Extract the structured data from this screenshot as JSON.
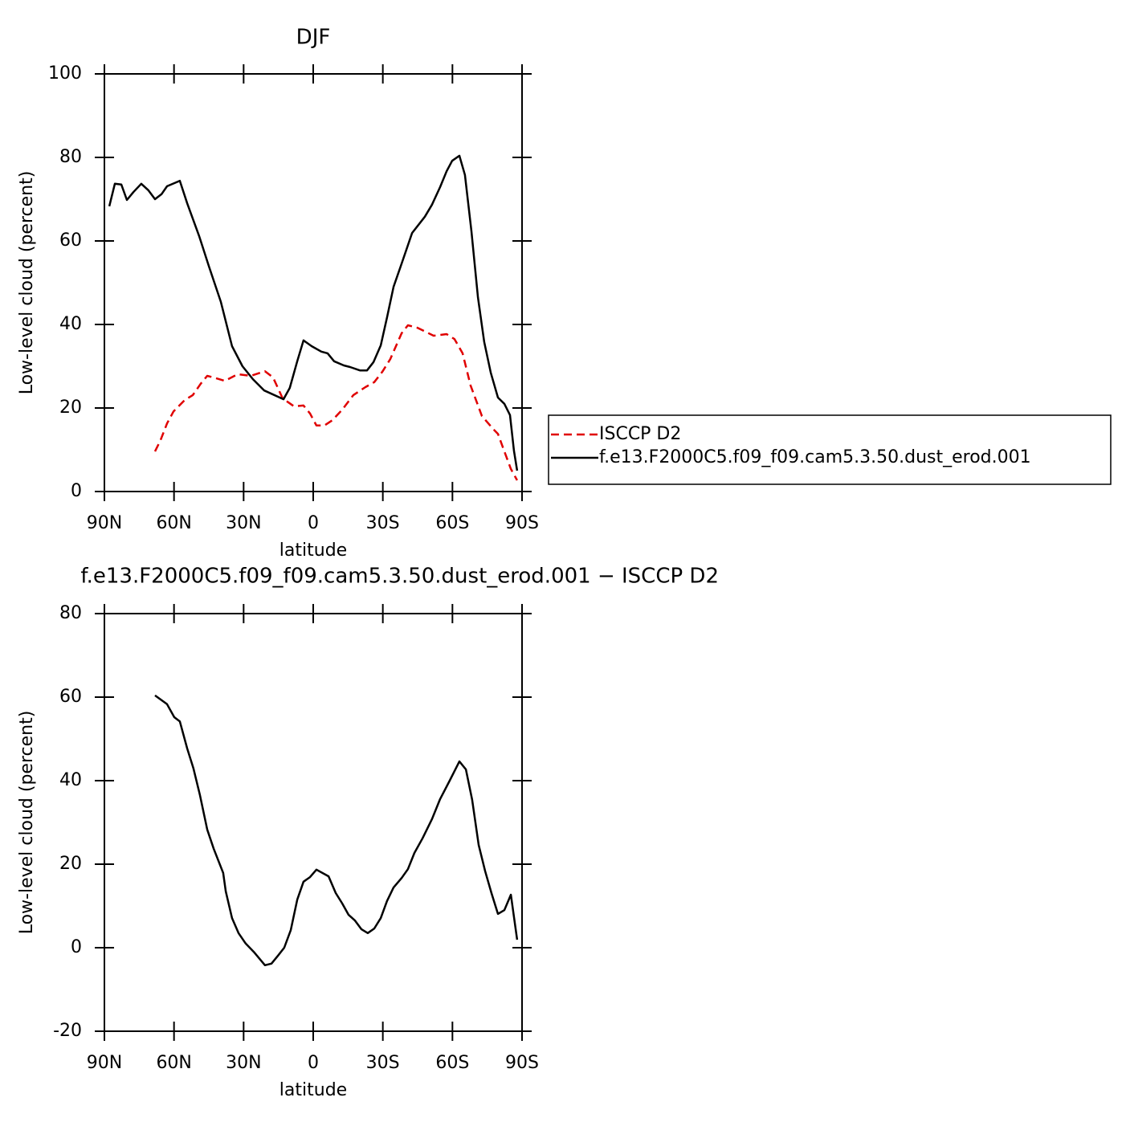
{
  "chart_data": [
    {
      "type": "line",
      "title": "DJF",
      "x_label": "latitude",
      "y_label": "Low-level cloud (percent)",
      "xlim": [
        90,
        -90
      ],
      "xticks": [
        {
          "value": 90,
          "label": "90N"
        },
        {
          "value": 60,
          "label": "60N"
        },
        {
          "value": 30,
          "label": "30N"
        },
        0,
        {
          "value": -30,
          "label": "30S"
        },
        {
          "value": -60,
          "label": "60S"
        },
        {
          "value": -90,
          "label": "90S"
        }
      ],
      "ylim": [
        0,
        100
      ],
      "yticks": [
        0,
        20,
        40,
        60,
        80,
        100
      ],
      "legend": "right",
      "series": [
        {
          "name": "ISCCP D2",
          "color": "#e00000",
          "dashed": true,
          "x": [
            68.2,
            65.8,
            63.0,
            60.2,
            55.4,
            51.9,
            48.5,
            45.7,
            42.9,
            38.1,
            32.5,
            27.0,
            20.8,
            17.3,
            13.2,
            8.3,
            4.2,
            1.4,
            -1.4,
            -4.8,
            -8.3,
            -12.5,
            -17.3,
            -22.5,
            -26.3,
            -29.8,
            -33.2,
            -38.1,
            -40.8,
            -45.0,
            -51.9,
            -57.5,
            -60.9,
            -64.4,
            -67.8,
            -72.7,
            -77.5,
            -79.6,
            -82.4,
            -85.2,
            -87.9
          ],
          "values": [
            9.6,
            12.3,
            16.3,
            19.2,
            21.9,
            23.1,
            25.8,
            27.7,
            27.3,
            26.5,
            28.1,
            27.7,
            28.8,
            27.3,
            22.3,
            20.4,
            20.6,
            18.7,
            15.8,
            15.8,
            17.1,
            19.6,
            23.1,
            25.0,
            26.2,
            28.7,
            31.7,
            37.9,
            39.8,
            39.2,
            37.3,
            37.7,
            36.5,
            33.1,
            25.4,
            18.1,
            15.0,
            13.8,
            9.6,
            5.4,
            2.7
          ]
        },
        {
          "name": "f.e13.F2000C5.f09_f09.cam5.3.50.dust_erod.001",
          "color": "#000000",
          "dashed": false,
          "x": [
            87.9,
            85.5,
            82.7,
            80.3,
            77.5,
            74.1,
            71.0,
            68.2,
            65.4,
            63.0,
            57.5,
            54.3,
            49.2,
            45.0,
            39.8,
            35.0,
            30.5,
            26.0,
            21.1,
            12.8,
            10.1,
            6.9,
            4.2,
            0.7,
            -3.5,
            -6.2,
            -9.0,
            -13.2,
            -15.9,
            -20.1,
            -23.2,
            -26.0,
            -29.1,
            -31.8,
            -34.6,
            -38.1,
            -42.6,
            -48.1,
            -51.2,
            -54.7,
            -57.5,
            -59.9,
            -63.0,
            -65.4,
            -68.2,
            -71.0,
            -73.7,
            -76.5,
            -79.6,
            -82.4,
            -84.8,
            -86.5,
            -87.9
          ],
          "values": [
            68.3,
            73.7,
            73.5,
            69.8,
            71.7,
            73.7,
            72.1,
            70.0,
            71.2,
            73.1,
            74.4,
            69.0,
            61.2,
            54.0,
            45.4,
            34.8,
            30.0,
            26.9,
            24.2,
            22.1,
            24.8,
            31.2,
            36.2,
            34.8,
            33.5,
            33.1,
            31.2,
            30.2,
            29.8,
            29.0,
            29.0,
            31.0,
            35.0,
            41.7,
            49.0,
            54.6,
            61.9,
            65.8,
            68.7,
            72.9,
            76.7,
            79.2,
            80.4,
            75.8,
            62.3,
            46.5,
            35.8,
            28.5,
            22.5,
            21.0,
            18.3,
            9.8,
            5.0
          ]
        }
      ]
    },
    {
      "type": "line",
      "title": "f.e13.F2000C5.f09_f09.cam5.3.50.dust_erod.001 − ISCCP D2",
      "x_label": "latitude",
      "y_label": "Low-level cloud (percent)",
      "xlim": [
        90,
        -90
      ],
      "xticks": [
        {
          "value": 90,
          "label": "90N"
        },
        {
          "value": 60,
          "label": "60N"
        },
        {
          "value": 30,
          "label": "30N"
        },
        0,
        {
          "value": -30,
          "label": "30S"
        },
        {
          "value": -60,
          "label": "60S"
        },
        {
          "value": -90,
          "label": "90S"
        }
      ],
      "ylim": [
        -20,
        80
      ],
      "yticks": [
        -20,
        0,
        20,
        40,
        60,
        80
      ],
      "series": [
        {
          "color": "#000000",
          "dashed": false,
          "x": [
            68.2,
            63.0,
            59.9,
            57.5,
            54.3,
            51.6,
            48.8,
            45.7,
            42.9,
            38.8,
            37.7,
            35.0,
            32.2,
            29.1,
            25.6,
            20.8,
            18.0,
            15.2,
            12.5,
            9.7,
            6.9,
            4.2,
            1.4,
            -1.4,
            -6.6,
            -9.7,
            -12.5,
            -15.2,
            -18.0,
            -20.8,
            -23.5,
            -26.3,
            -29.1,
            -31.8,
            -34.6,
            -38.1,
            -40.8,
            -43.6,
            -47.1,
            -51.2,
            -54.7,
            -58.8,
            -63.0,
            -65.8,
            -68.5,
            -71.3,
            -74.1,
            -76.8,
            -79.6,
            -82.4,
            -85.2,
            -87.9
          ],
          "values": [
            60.4,
            58.3,
            55.2,
            54.2,
            47.7,
            42.9,
            36.5,
            28.3,
            23.7,
            17.9,
            13.5,
            7.1,
            3.5,
            1.0,
            -1.0,
            -4.2,
            -3.8,
            -1.9,
            0.0,
            4.2,
            11.5,
            15.8,
            16.9,
            18.7,
            17.1,
            13.1,
            10.6,
            7.9,
            6.5,
            4.4,
            3.5,
            4.6,
            7.1,
            11.2,
            14.4,
            16.7,
            18.8,
            22.7,
            26.2,
            30.8,
            35.6,
            40.0,
            44.6,
            42.7,
            35.4,
            24.6,
            18.3,
            13.1,
            8.1,
            9.0,
            12.7,
            1.9
          ]
        }
      ]
    }
  ]
}
